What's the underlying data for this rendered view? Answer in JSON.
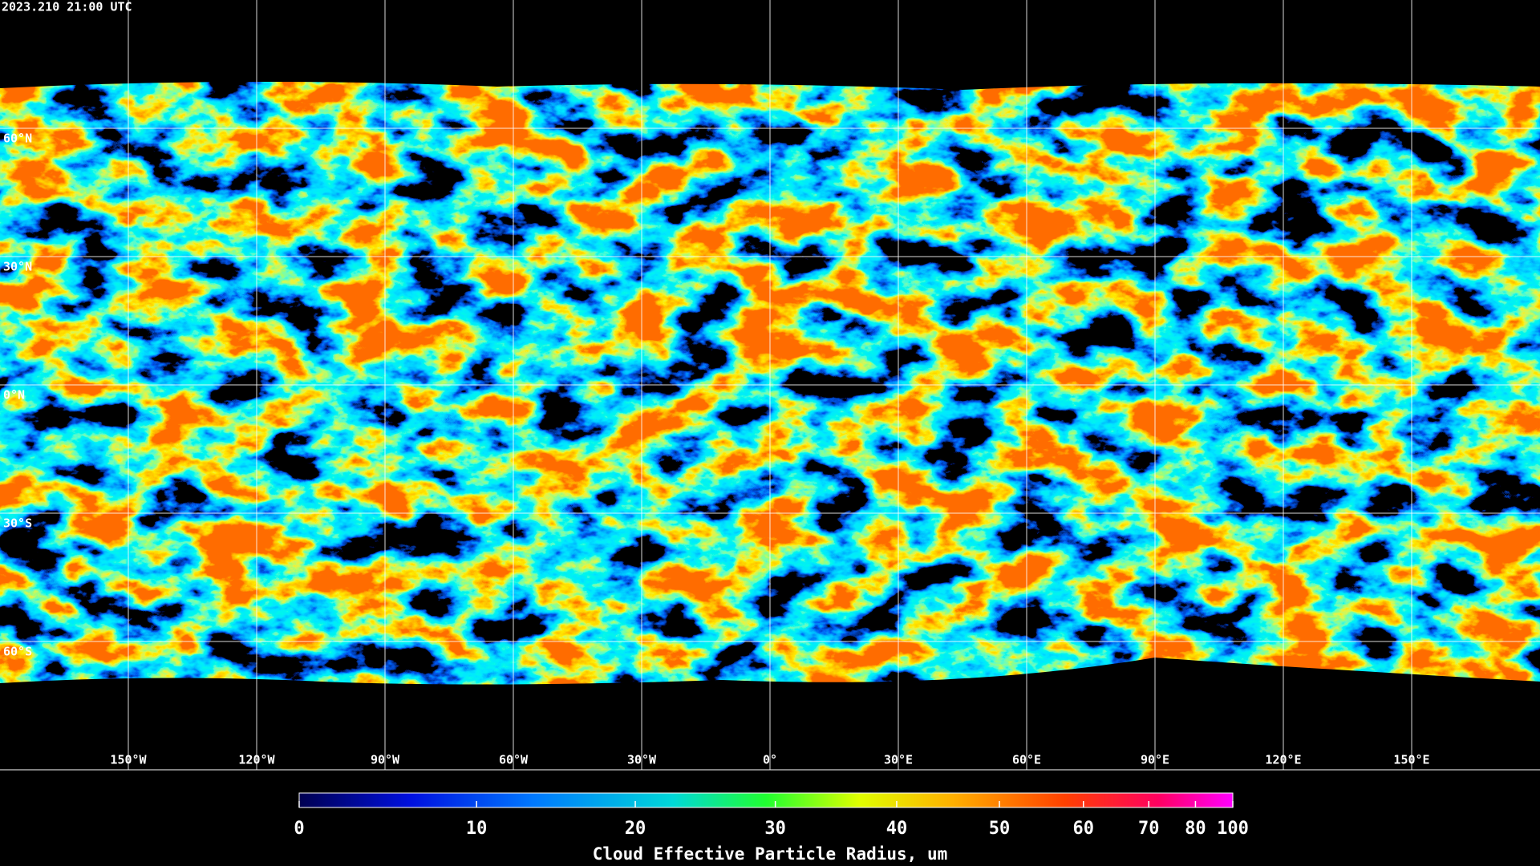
{
  "header": {
    "timestamp": "2023.210 21:00 UTC"
  },
  "map": {
    "lat_labels": [
      "60°N",
      "30°N",
      "0°N",
      "30°S",
      "60°S"
    ],
    "lon_labels": [
      "150°W",
      "120°W",
      "90°W",
      "60°W",
      "30°W",
      "0°",
      "30°E",
      "60°E",
      "90°E",
      "120°E",
      "150°E"
    ]
  },
  "colorbar": {
    "label": "Cloud Effective Particle Radius, um",
    "range": [
      0,
      100
    ],
    "ticks": [
      0,
      10,
      20,
      30,
      40,
      50,
      60,
      70,
      80,
      100
    ]
  }
}
